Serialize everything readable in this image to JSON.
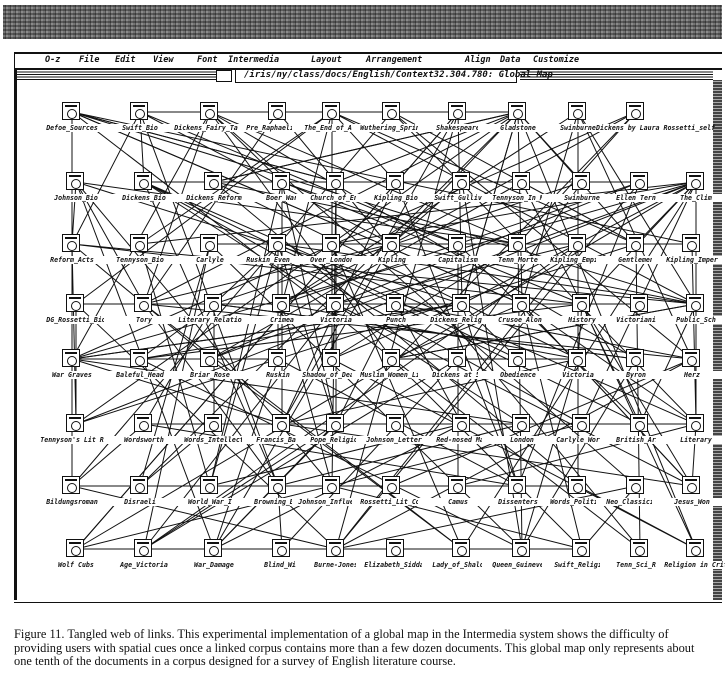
{
  "menu": [
    "O-z",
    "File",
    "Edit",
    "View",
    "Font",
    "Intermedia",
    "Layout",
    "Arrangement",
    "Align",
    "Data",
    "Customize"
  ],
  "window_title": "/iris/ny/class/docs/English/Context32.304.780: Global Map",
  "nodes": [
    {
      "id": 0,
      "label": "Defoe_Sources"
    },
    {
      "id": 1,
      "label": "Swift_Bio"
    },
    {
      "id": 2,
      "label": "Dickens_Fairy_Tale"
    },
    {
      "id": 3,
      "label": "Pre_Raphaelitism"
    },
    {
      "id": 4,
      "label": "The_End_of_Age"
    },
    {
      "id": 5,
      "label": "Wuthering_Spring"
    },
    {
      "id": 6,
      "label": "Shakespeare"
    },
    {
      "id": 7,
      "label": "Gladstone"
    },
    {
      "id": 8,
      "label": "Swinburne"
    },
    {
      "id": 9,
      "label": "Dickens by Laura Rossetti_self"
    },
    {
      "id": 10,
      "label": "Johnson_Bio"
    },
    {
      "id": 11,
      "label": "Dickens_Bio"
    },
    {
      "id": 12,
      "label": "Dickens_Reform"
    },
    {
      "id": 13,
      "label": "Boer_War"
    },
    {
      "id": 14,
      "label": "Church_of_Eng"
    },
    {
      "id": 15,
      "label": "Kipling_Bio"
    },
    {
      "id": 16,
      "label": "Swift_Gulliver"
    },
    {
      "id": 17,
      "label": "Tennyson_In_Mem"
    },
    {
      "id": 18,
      "label": "Swinburne"
    },
    {
      "id": 19,
      "label": "Ellen Ternan"
    },
    {
      "id": 20,
      "label": "The_Clim"
    },
    {
      "id": 21,
      "label": "Reform_Acts"
    },
    {
      "id": 22,
      "label": "Tennyson_Bio"
    },
    {
      "id": 23,
      "label": "Carlyle"
    },
    {
      "id": 24,
      "label": "Ruskin_Even_Pret"
    },
    {
      "id": 25,
      "label": "Over_London"
    },
    {
      "id": 26,
      "label": "Kipling"
    },
    {
      "id": 27,
      "label": "Capitalism"
    },
    {
      "id": 28,
      "label": "Tenn_Morte"
    },
    {
      "id": 29,
      "label": "Kipling_Empire"
    },
    {
      "id": 30,
      "label": "Gentlemen"
    },
    {
      "id": 31,
      "label": "Kipling_Imper"
    },
    {
      "id": 32,
      "label": "DG_Rossetti_Bio"
    },
    {
      "id": 33,
      "label": "Tory"
    },
    {
      "id": 34,
      "label": "Literary_Relations"
    },
    {
      "id": 35,
      "label": "Crimea"
    },
    {
      "id": 36,
      "label": "Victoria"
    },
    {
      "id": 37,
      "label": "Punch"
    },
    {
      "id": 38,
      "label": "Dickens_Religion"
    },
    {
      "id": 39,
      "label": "Crusoe_Alone"
    },
    {
      "id": 40,
      "label": "History"
    },
    {
      "id": 41,
      "label": "Victorianism"
    },
    {
      "id": 42,
      "label": "Public_Sch"
    },
    {
      "id": 43,
      "label": "War Graves"
    },
    {
      "id": 44,
      "label": "Baleful_Head"
    },
    {
      "id": 45,
      "label": "Briar_Rose"
    },
    {
      "id": 46,
      "label": "Ruskin"
    },
    {
      "id": 47,
      "label": "Shadow_of_Death"
    },
    {
      "id": 48,
      "label": "Muslim_Women_Lit"
    },
    {
      "id": 49,
      "label": "Dickens at 50"
    },
    {
      "id": 50,
      "label": "Obedience"
    },
    {
      "id": 51,
      "label": "Victoria"
    },
    {
      "id": 52,
      "label": "Byron"
    },
    {
      "id": 53,
      "label": "Herz"
    },
    {
      "id": 54,
      "label": "Tennyson's Lit Rel"
    },
    {
      "id": 55,
      "label": "Wordsworth"
    },
    {
      "id": 56,
      "label": "Words_Intellect"
    },
    {
      "id": 57,
      "label": "Francis_Bacon"
    },
    {
      "id": 58,
      "label": "Pope_Religion"
    },
    {
      "id": 59,
      "label": "Johnson_Letters"
    },
    {
      "id": 60,
      "label": "Red-nosed Man"
    },
    {
      "id": 61,
      "label": "London"
    },
    {
      "id": 62,
      "label": "Carlyle_Works"
    },
    {
      "id": 63,
      "label": "British_Army"
    },
    {
      "id": 64,
      "label": "Literary"
    },
    {
      "id": 65,
      "label": "Bildungsroman"
    },
    {
      "id": 66,
      "label": "Disraeli"
    },
    {
      "id": 67,
      "label": "World_War_I"
    },
    {
      "id": 68,
      "label": "Browning_Bio"
    },
    {
      "id": 69,
      "label": "Johnson_Influence"
    },
    {
      "id": 70,
      "label": "Rossetti_Lit_Cor"
    },
    {
      "id": 71,
      "label": "Camus"
    },
    {
      "id": 72,
      "label": "Dissenters"
    },
    {
      "id": 73,
      "label": "Words_Politics"
    },
    {
      "id": 74,
      "label": "Neo_Classicists"
    },
    {
      "id": 75,
      "label": "Jesus_Won"
    },
    {
      "id": 76,
      "label": "Wolf Cubs"
    },
    {
      "id": 77,
      "label": "Age_Victoria"
    },
    {
      "id": 78,
      "label": "War_Damage"
    },
    {
      "id": 79,
      "label": "Blind_Wil"
    },
    {
      "id": 80,
      "label": "Burne-Jones"
    },
    {
      "id": 81,
      "label": "Elizabeth_Siddal"
    },
    {
      "id": 82,
      "label": "Lady_of_Shalott"
    },
    {
      "id": 83,
      "label": "Queen_Guinevere"
    },
    {
      "id": 84,
      "label": "Swift_Religion"
    },
    {
      "id": 85,
      "label": "Tenn_Sci_Rel"
    },
    {
      "id": 86,
      "label": "Religion in Crit"
    }
  ],
  "caption": {
    "figure_label": "Figure 11.",
    "text": "Tangled web of links. This experimental implementation of a global map in the Intermedia system shows the difficulty of providing users with spatial cues once a linked corpus contains more than a few dozen documents. This global map only represents about one tenth of the documents in a corpus designed for a survey of English literature course."
  }
}
